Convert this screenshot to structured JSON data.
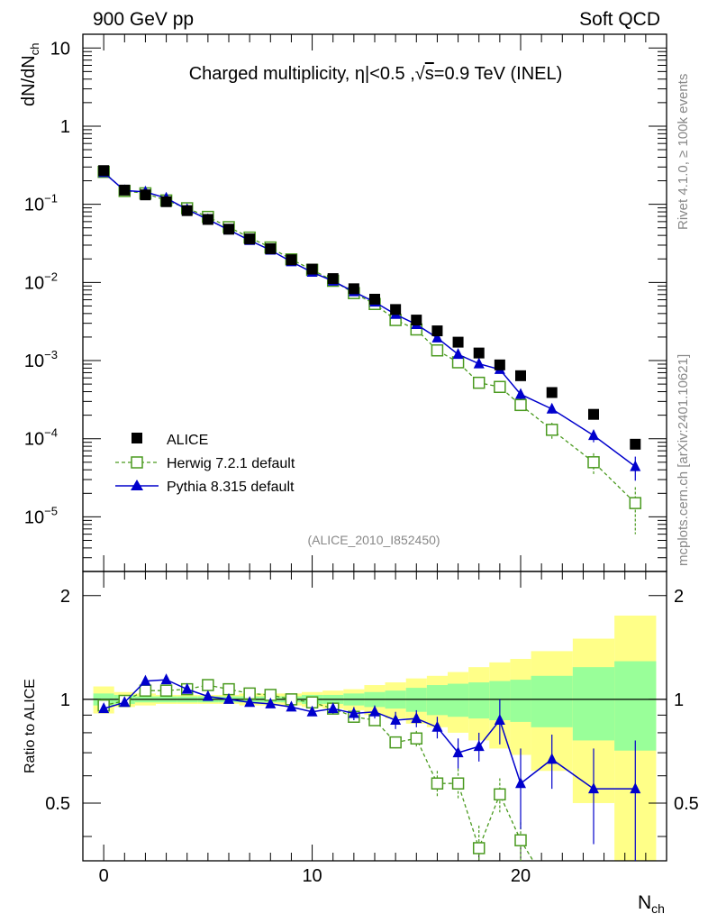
{
  "header": {
    "left": "900 GeV pp",
    "right": "Soft QCD"
  },
  "side": {
    "rivet": "Rivet 4.1.0, ≥ 100k events",
    "site": "mcplots.cern.ch [arXiv:2401.10621]"
  },
  "chart_data": {
    "type": "scatter",
    "title": "Charged multiplicity, |η|<0.5 ,√s=0.9 TeV (INEL)",
    "title_parts": {
      "pre": "Charged multiplicity, ",
      "eta": "η",
      "mid": "|<0.5 ,",
      "sqrt": "√",
      "s": "s",
      "post": "=0.9 TeV (INEL)"
    },
    "analysis_id": "(ALICE_2010_I852450)",
    "xlabel": "N",
    "xlabel_sub": "ch",
    "ylabel": "dN/dN",
    "ylabel_sub": "ch",
    "ratio_ylabel": "Ratio to ALICE",
    "xlim": [
      -1,
      27
    ],
    "ylim": [
      2e-06,
      15
    ],
    "ratio_ylim": [
      0.34,
      2.35
    ],
    "x_ticks": [
      0,
      10,
      20
    ],
    "y_ticks": [
      {
        "v": 10,
        "base": "10",
        "exp": ""
      },
      {
        "v": 1,
        "base": "1",
        "exp": ""
      },
      {
        "v": 0.1,
        "base": "10",
        "exp": "−1"
      },
      {
        "v": 0.01,
        "base": "10",
        "exp": "−2"
      },
      {
        "v": 0.001,
        "base": "10",
        "exp": "−3"
      },
      {
        "v": 0.0001,
        "base": "10",
        "exp": "−4"
      },
      {
        "v": 1e-05,
        "base": "10",
        "exp": "−5"
      }
    ],
    "ratio_ticks": [
      {
        "v": 2,
        "label": "2"
      },
      {
        "v": 1,
        "label": "1"
      },
      {
        "v": 0.5,
        "label": "0.5"
      }
    ],
    "legend": [
      "ALICE",
      "Herwig 7.2.1 default",
      "Pythia 8.315 default"
    ],
    "colors": {
      "data": "#000000",
      "herwig": "#4a9a1f",
      "pythia": "#0000cc",
      "band_inner": "#99ff99",
      "band_outer": "#ffff88"
    },
    "series": [
      {
        "name": "ALICE",
        "x": [
          0,
          1,
          2,
          3,
          4,
          5,
          6,
          7,
          8,
          9,
          10,
          11,
          12,
          13,
          14,
          15,
          16,
          17,
          18,
          19,
          20,
          21.5,
          23.5,
          25.5
        ],
        "y": [
          0.27,
          0.152,
          0.132,
          0.108,
          0.083,
          0.064,
          0.048,
          0.036,
          0.027,
          0.0195,
          0.0148,
          0.0112,
          0.0083,
          0.0061,
          0.0045,
          0.0033,
          0.0024,
          0.00172,
          0.00125,
          0.00088,
          0.00064,
          0.00039,
          0.000205,
          8.5e-05
        ]
      },
      {
        "name": "Herwig 7.2.1 default",
        "x": [
          0,
          1,
          2,
          3,
          4,
          5,
          6,
          7,
          8,
          9,
          10,
          11,
          12,
          13,
          14,
          15,
          16,
          17,
          18,
          19,
          20,
          21.5,
          23.5,
          25.5
        ],
        "y": [
          0.26,
          0.148,
          0.138,
          0.112,
          0.089,
          0.069,
          0.051,
          0.0375,
          0.028,
          0.0197,
          0.0145,
          0.0105,
          0.0073,
          0.0053,
          0.0033,
          0.0025,
          0.00135,
          0.00095,
          0.00052,
          0.00046,
          0.00027,
          0.00013,
          5e-05,
          1.5e-05
        ],
        "yerr": [
          0,
          0,
          0,
          0,
          0,
          0,
          0,
          0,
          0,
          0,
          0,
          0,
          0,
          0.0003,
          0.0003,
          0.0002,
          0.00012,
          0.0001,
          6e-05,
          5e-05,
          4e-05,
          3e-05,
          1.5e-05,
          9e-06
        ]
      },
      {
        "name": "Pythia 8.315 default",
        "x": [
          0,
          1,
          2,
          3,
          4,
          5,
          6,
          7,
          8,
          9,
          10,
          11,
          12,
          13,
          14,
          15,
          16,
          17,
          18,
          19,
          20,
          21.5,
          23.5,
          25.5
        ],
        "y": [
          0.255,
          0.15,
          0.144,
          0.12,
          0.086,
          0.064,
          0.047,
          0.0345,
          0.0259,
          0.0184,
          0.0135,
          0.0104,
          0.0076,
          0.0056,
          0.0039,
          0.0029,
          0.00195,
          0.0012,
          0.00091,
          0.00077,
          0.00037,
          0.00024,
          0.00011,
          4.4e-05
        ],
        "yerr": [
          0,
          0,
          0,
          0,
          0,
          0,
          0,
          0,
          0,
          0,
          0,
          0,
          0,
          0,
          0,
          0,
          0,
          0,
          4e-05,
          3e-05,
          5e-05,
          3e-05,
          2e-05,
          1.5e-05
        ]
      }
    ],
    "ratios": {
      "herwig": [
        0.96,
        0.99,
        1.06,
        1.06,
        1.07,
        1.1,
        1.07,
        1.04,
        1.03,
        1.0,
        0.98,
        0.94,
        0.89,
        0.87,
        0.75,
        0.77,
        0.57,
        0.57,
        0.37,
        0.53,
        0.39,
        null,
        null,
        null
      ],
      "herwig_err": [
        0,
        0,
        0,
        0,
        0,
        0,
        0,
        0,
        0,
        0,
        0,
        0,
        0,
        0,
        0.03,
        0.04,
        0.05,
        0.06,
        0.06,
        0.06,
        0.05,
        0,
        0,
        0
      ],
      "pythia": [
        0.94,
        0.98,
        1.13,
        1.14,
        1.07,
        1.02,
        1.0,
        0.98,
        0.97,
        0.95,
        0.92,
        0.94,
        0.91,
        0.92,
        0.87,
        0.88,
        0.83,
        0.7,
        0.73,
        0.87,
        0.57,
        0.67,
        0.55,
        0.55
      ],
      "pythia_err": [
        0,
        0,
        0,
        0,
        0,
        0,
        0,
        0,
        0,
        0,
        0,
        0.03,
        0.04,
        0.04,
        0.05,
        0.05,
        0.06,
        0.07,
        0.07,
        0.13,
        0.15,
        0.12,
        0.17,
        0.21
      ]
    },
    "bands": {
      "edges": [
        -0.5,
        0.5,
        1.5,
        2.5,
        3.5,
        4.5,
        5.5,
        6.5,
        7.5,
        8.5,
        9.5,
        10.5,
        11.5,
        12.5,
        13.5,
        14.5,
        15.5,
        16.5,
        17.5,
        18.5,
        19.5,
        20.5,
        22.5,
        24.5,
        26.5
      ],
      "inner": [
        0.04,
        0.03,
        0.02,
        0.02,
        0.02,
        0.02,
        0.02,
        0.02,
        0.02,
        0.02,
        0.03,
        0.03,
        0.04,
        0.05,
        0.06,
        0.08,
        0.1,
        0.11,
        0.12,
        0.13,
        0.14,
        0.17,
        0.24,
        0.29
      ],
      "outer": [
        0.09,
        0.05,
        0.04,
        0.03,
        0.03,
        0.03,
        0.03,
        0.04,
        0.04,
        0.04,
        0.05,
        0.06,
        0.07,
        0.1,
        0.12,
        0.15,
        0.17,
        0.2,
        0.24,
        0.28,
        0.31,
        0.38,
        0.5,
        0.75
      ]
    }
  }
}
